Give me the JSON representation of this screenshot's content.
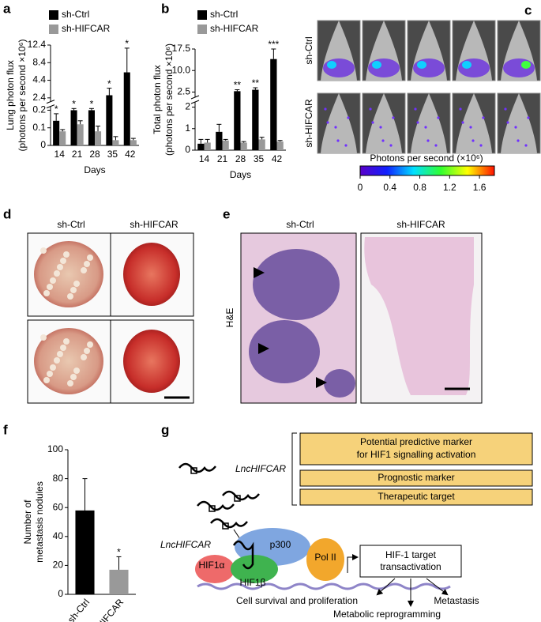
{
  "panel_labels": [
    "a",
    "b",
    "c",
    "d",
    "e",
    "f",
    "g"
  ],
  "chart_data": [
    {
      "type": "bar",
      "categories": [
        "14",
        "21",
        "28",
        "35",
        "42"
      ],
      "xlabel": "Days",
      "ylabel": [
        "Lung photon flux",
        "(photons per second ×10⁶)"
      ],
      "series": [
        {
          "name": "sh-Ctrl",
          "color": "#000000",
          "values": [
            0.14,
            0.2,
            0.2,
            2.7,
            6.2
          ],
          "errors": [
            0.04,
            0.3,
            0.3,
            0.8,
            5.5
          ]
        },
        {
          "name": "sh-HIFCAR",
          "color": "#999999",
          "values": [
            0.08,
            0.12,
            0.08,
            0.03,
            0.03
          ],
          "errors": [
            0.01,
            0.02,
            0.03,
            0.02,
            0.01
          ]
        }
      ],
      "annotations": [
        "*",
        "*",
        "*",
        "*",
        "*"
      ],
      "ylim": [
        0,
        12.4
      ],
      "yticks": [
        0,
        0.1,
        0.2,
        2.4,
        4.4,
        8.4,
        12.4
      ],
      "axis_break": [
        0.2,
        2.4
      ]
    },
    {
      "type": "bar",
      "categories": [
        "14",
        "21",
        "28",
        "35",
        "42"
      ],
      "xlabel": "Days",
      "ylabel": [
        "Total photon flux",
        "(photons per second ×10⁶)"
      ],
      "series": [
        {
          "name": "sh-Ctrl",
          "color": "#000000",
          "values": [
            0.3,
            0.85,
            2.8,
            3.3,
            14
          ],
          "errors": [
            0.2,
            0.35,
            0.5,
            0.7,
            3.5
          ]
        },
        {
          "name": "sh-HIFCAR",
          "color": "#999999",
          "values": [
            0.35,
            0.45,
            0.35,
            0.5,
            0.4
          ],
          "errors": [
            0.15,
            0.05,
            0.05,
            0.1,
            0.05
          ]
        }
      ],
      "annotations": [
        null,
        null,
        "**",
        "**",
        "***"
      ],
      "ylim": [
        0,
        17.5
      ],
      "yticks": [
        0,
        1,
        2,
        2.5,
        {
          "value": 10,
          "label": "10.0"
        },
        17.5
      ],
      "axis_break": [
        2,
        2.5
      ]
    },
    {
      "type": "bar",
      "categories": [
        "sh-Ctrl",
        "sh-HIFCAR"
      ],
      "ylabel": [
        "Number of",
        "metastasis nodules"
      ],
      "values": [
        58,
        17
      ],
      "errors": [
        22,
        9
      ],
      "colors": [
        "#000000",
        "#999999"
      ],
      "annotations": [
        null,
        "*"
      ],
      "ylim": [
        0,
        100
      ],
      "yticks": [
        0,
        20,
        40,
        60,
        80,
        100
      ]
    }
  ],
  "imaging": {
    "rows": [
      "sh-Ctrl",
      "sh-HIFCAR"
    ],
    "colorbar": {
      "label": "Photons per second (×10⁶)",
      "lim": [
        0,
        1.8
      ],
      "ticks": [
        0,
        0.4,
        0.8,
        1.2,
        1.6
      ]
    }
  },
  "lungs": {
    "columns": [
      "sh-Ctrl",
      "sh-HIFCAR"
    ]
  },
  "histology": {
    "columns": [
      "sh-Ctrl",
      "sh-HIFCAR"
    ],
    "row_label": "H&E"
  },
  "diagram": {
    "boxes": [
      [
        "Potential predictive marker",
        "for HIF1 signalling activation"
      ],
      [
        "Prognostic marker"
      ],
      [
        "Therapeutic target"
      ]
    ],
    "molecule_labels": [
      "LncHIFCAR",
      "LncHIFCAR"
    ],
    "proteins": [
      "HIF1α",
      "HIF1β",
      "p300",
      "Pol II"
    ],
    "target": [
      "HIF-1 target",
      "transactivation"
    ],
    "outcomes": [
      "Cell survival and proliferation",
      "Metabolic reprogramming",
      "Metastasis"
    ]
  }
}
